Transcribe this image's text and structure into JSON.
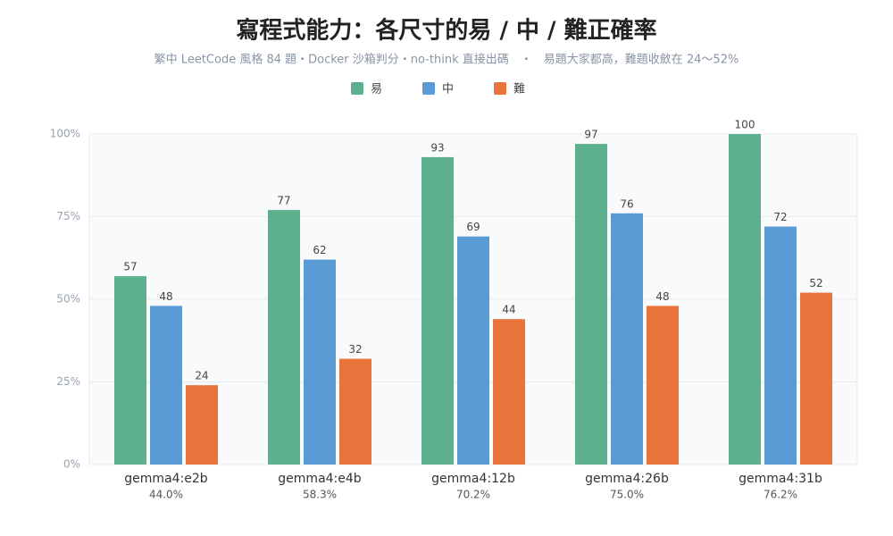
{
  "chart_data": {
    "type": "bar",
    "title": "寫程式能力：各尺寸的易 / 中 / 難正確率",
    "subtitle": "繁中 LeetCode 風格 84 題・Docker 沙箱判分・no-think 直接出碼　・　易題大家都高，難題收斂在 24～52%",
    "categories": [
      "gemma4:e2b",
      "gemma4:e4b",
      "gemma4:12b",
      "gemma4:26b",
      "gemma4:31b"
    ],
    "category_sublabels": [
      "44.0%",
      "58.3%",
      "70.2%",
      "75.0%",
      "76.2%"
    ],
    "series": [
      {
        "name": "易",
        "color": "#5cb08e",
        "values": [
          57,
          77,
          93,
          97,
          100
        ]
      },
      {
        "name": "中",
        "color": "#5b9bd5",
        "values": [
          48,
          62,
          69,
          76,
          72
        ]
      },
      {
        "name": "難",
        "color": "#e8743b",
        "values": [
          24,
          32,
          44,
          48,
          52
        ]
      }
    ],
    "ylim": [
      0,
      100
    ],
    "yticks": [
      {
        "value": 0,
        "label": "0%"
      },
      {
        "value": 25,
        "label": "25%"
      },
      {
        "value": 50,
        "label": "50%"
      },
      {
        "value": 75,
        "label": "75%"
      },
      {
        "value": 100,
        "label": "100%"
      }
    ],
    "grid": true,
    "legend": "top"
  }
}
